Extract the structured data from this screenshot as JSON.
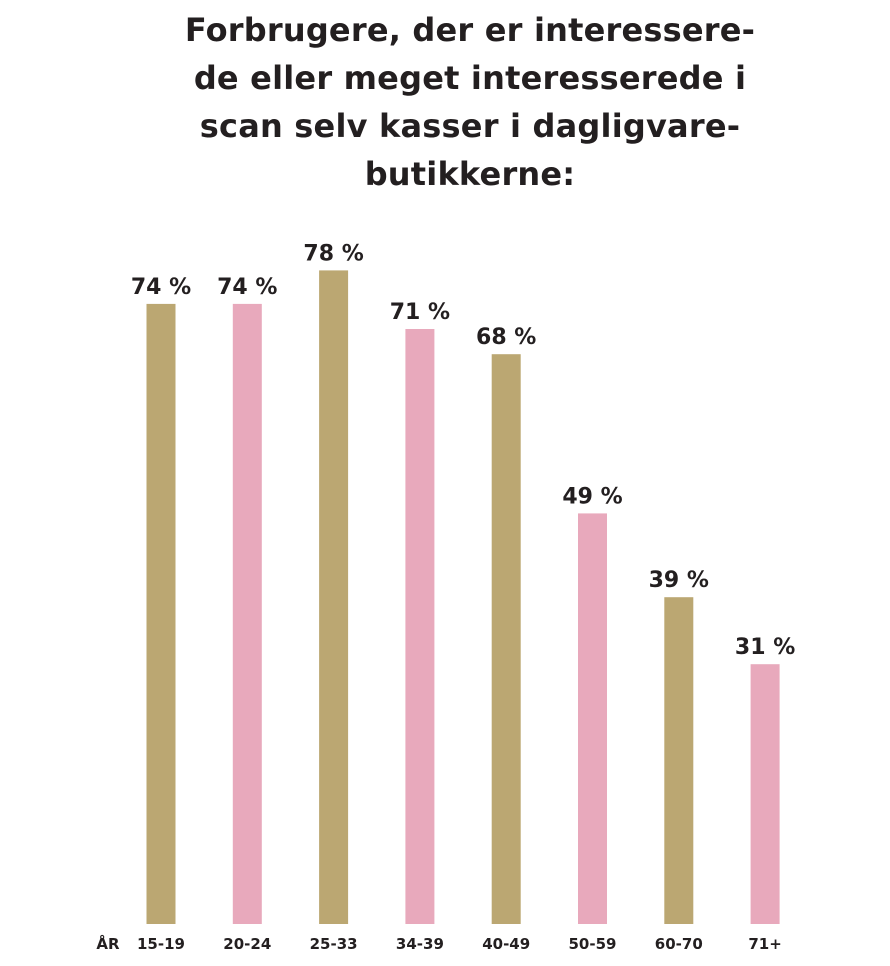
{
  "chart_data": {
    "type": "bar",
    "title_lines": [
      "Forbrugere, der er interessere-",
      "de eller meget interesserede i",
      "scan selv kasser i dagligvare-",
      "butikkerne:"
    ],
    "x_axis_prefix": "ÅR",
    "categories": [
      "15-19",
      "20-24",
      "25-33",
      "34-39",
      "40-49",
      "50-59",
      "60-70",
      "71+"
    ],
    "values": [
      74,
      74,
      78,
      71,
      68,
      49,
      39,
      31
    ],
    "value_labels": [
      "74 %",
      "74 %",
      "78 %",
      "71 %",
      "68 %",
      "49 %",
      "39 %",
      "31 %"
    ],
    "unit": "%",
    "ylim": [
      0,
      100
    ],
    "grid": false,
    "colors": {
      "gold": "#bba772",
      "pink": "#e8a9bc"
    },
    "bar_color_pattern": [
      "gold",
      "pink",
      "gold",
      "pink",
      "gold",
      "pink",
      "gold",
      "pink"
    ]
  }
}
